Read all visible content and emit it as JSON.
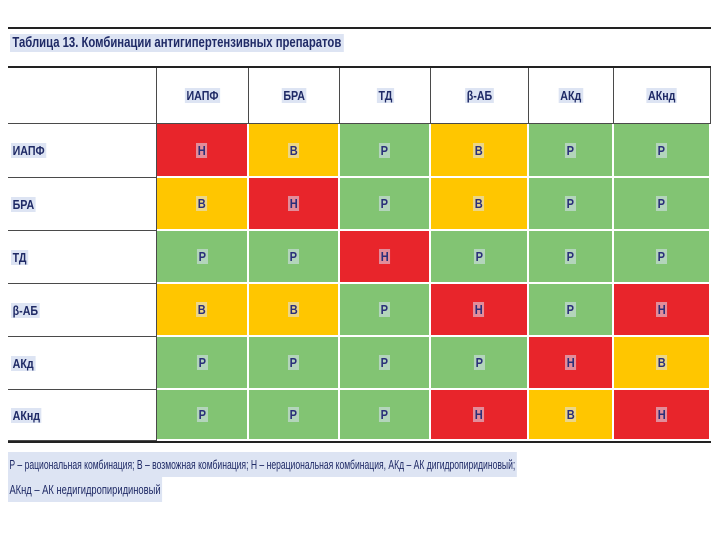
{
  "title": "Таблица 13. Комбинации антигипертензивных препаратов",
  "columns": [
    "ИАПФ",
    "БРА",
    "ТД",
    "β-АБ",
    "АКд",
    "АКнд"
  ],
  "rows": [
    {
      "label": "ИАПФ",
      "cells": [
        "Н",
        "В",
        "Р",
        "В",
        "Р",
        "Р"
      ]
    },
    {
      "label": "БРА",
      "cells": [
        "В",
        "Н",
        "Р",
        "В",
        "Р",
        "Р"
      ]
    },
    {
      "label": "ТД",
      "cells": [
        "Р",
        "Р",
        "Н",
        "Р",
        "Р",
        "Р"
      ]
    },
    {
      "label": "β-АБ",
      "cells": [
        "В",
        "В",
        "Р",
        "Н",
        "Р",
        "Н"
      ]
    },
    {
      "label": "АКд",
      "cells": [
        "Р",
        "Р",
        "Р",
        "Р",
        "Н",
        "В"
      ]
    },
    {
      "label": "АКнд",
      "cells": [
        "Р",
        "Р",
        "Р",
        "Н",
        "В",
        "Н"
      ]
    }
  ],
  "colors": {
    "Н": "#e8252b",
    "В": "#ffc600",
    "Р": "#82c473"
  },
  "legend": {
    "line1": "Р – рациональная комбинация; В – возможная комбинация; Н – нерациональная комбинация, АКд – АК дигидропиридиновый;",
    "line2": "АКнд – АК недигидропиридиновый"
  }
}
